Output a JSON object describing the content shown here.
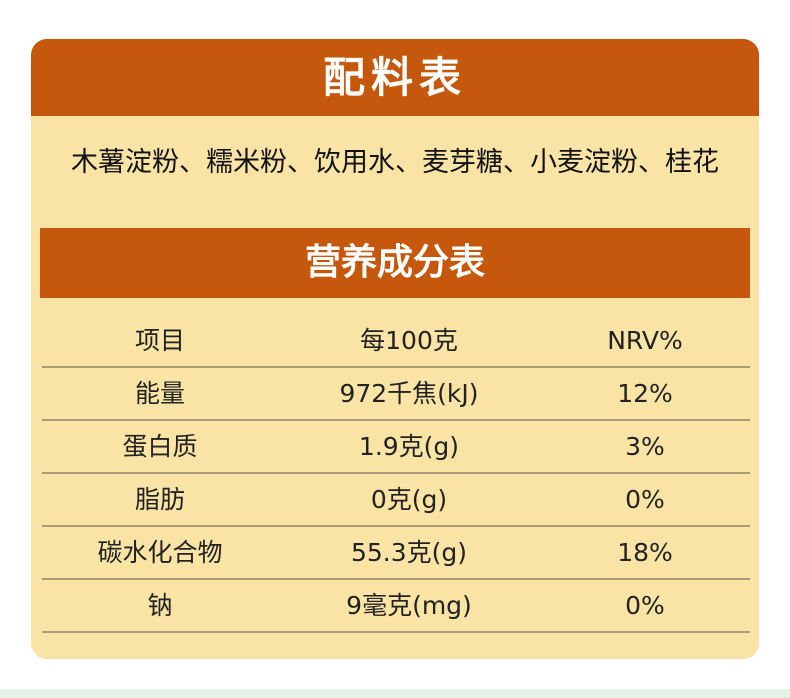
{
  "ingredients_section": {
    "title": "配料表",
    "text": "木薯淀粉、糯米粉、饮用水、麦芽糖、小麦淀粉、桂花"
  },
  "nutrition_section": {
    "title": "营养成分表",
    "columns": [
      "项目",
      "每100克",
      "NRV%"
    ],
    "rows": [
      [
        "能量",
        "972千焦(kJ)",
        "12%"
      ],
      [
        "蛋白质",
        "1.9克(g)",
        "3%"
      ],
      [
        "脂肪",
        "0克(g)",
        "0%"
      ],
      [
        "碳水化合物",
        "55.3克(g)",
        "18%"
      ],
      [
        "钠",
        "9毫克(mg)",
        "0%"
      ]
    ]
  },
  "colors": {
    "header_orange": "#c5580d",
    "card_background": "#f9e4a5",
    "divider": "#a99a78"
  }
}
